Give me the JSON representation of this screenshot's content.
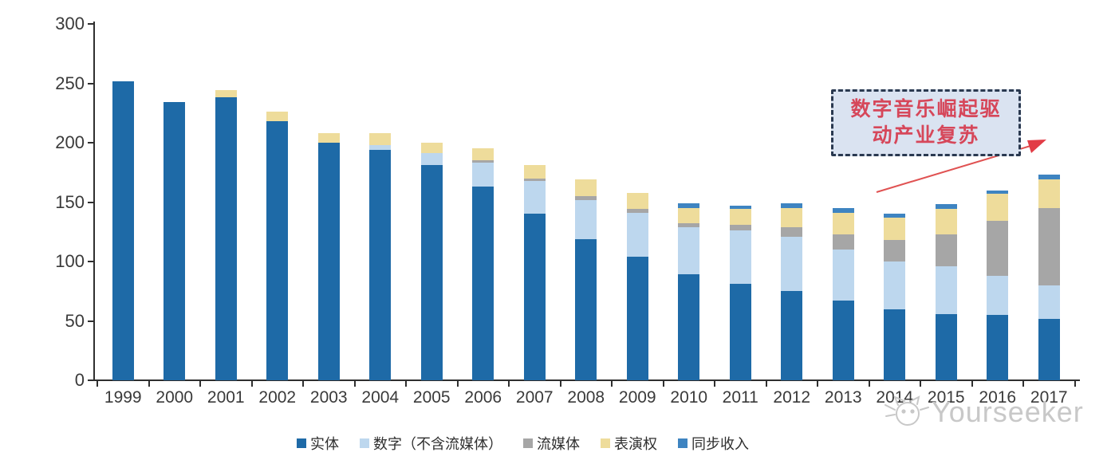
{
  "chart_data": {
    "type": "bar",
    "stacked": true,
    "title": "",
    "xlabel": "",
    "ylabel": "",
    "ylim": [
      0,
      300
    ],
    "yticks": [
      0,
      50,
      100,
      150,
      200,
      250,
      300
    ],
    "grid": false,
    "legend_position": "bottom",
    "categories": [
      "1999",
      "2000",
      "2001",
      "2002",
      "2003",
      "2004",
      "2005",
      "2006",
      "2007",
      "2008",
      "2009",
      "2010",
      "2011",
      "2012",
      "2013",
      "2014",
      "2015",
      "2016",
      "2017"
    ],
    "series": [
      {
        "name": "实体",
        "color": "#1e6aa7",
        "values": [
          252,
          234,
          238,
          218,
          200,
          194,
          181,
          163,
          140,
          119,
          104,
          89,
          81,
          75,
          67,
          60,
          56,
          55,
          52
        ]
      },
      {
        "name": "数字（不含流媒体）",
        "color": "#bdd7ee",
        "values": [
          0,
          0,
          0,
          0,
          0,
          4,
          10,
          20,
          28,
          33,
          37,
          40,
          45,
          46,
          43,
          40,
          40,
          33,
          28
        ]
      },
      {
        "name": "流媒体",
        "color": "#a6a6a6",
        "values": [
          0,
          0,
          0,
          0,
          0,
          0,
          0,
          2,
          2,
          3,
          3,
          3,
          5,
          8,
          13,
          18,
          27,
          46,
          65
        ]
      },
      {
        "name": "表演权",
        "color": "#eedc9b",
        "values": [
          0,
          0,
          6,
          8,
          8,
          10,
          9,
          10,
          11,
          14,
          14,
          13,
          13,
          16,
          18,
          19,
          21,
          23,
          24
        ]
      },
      {
        "name": "同步收入",
        "color": "#3e84c1",
        "values": [
          0,
          0,
          0,
          0,
          0,
          0,
          0,
          0,
          0,
          0,
          0,
          4,
          3,
          4,
          4,
          3,
          4,
          3,
          4
        ]
      }
    ]
  },
  "annotation": {
    "line1": "数字音乐崛起驱",
    "line2": "动产业复苏",
    "text_color": "#d6475a",
    "box_fill": "#dae3f1",
    "border_color": "#2a3950",
    "arrow_color": "#e23c46"
  },
  "watermark": {
    "text": "Yourseeker",
    "logo": "cat-face-icon",
    "color": "#c8c8c8"
  }
}
